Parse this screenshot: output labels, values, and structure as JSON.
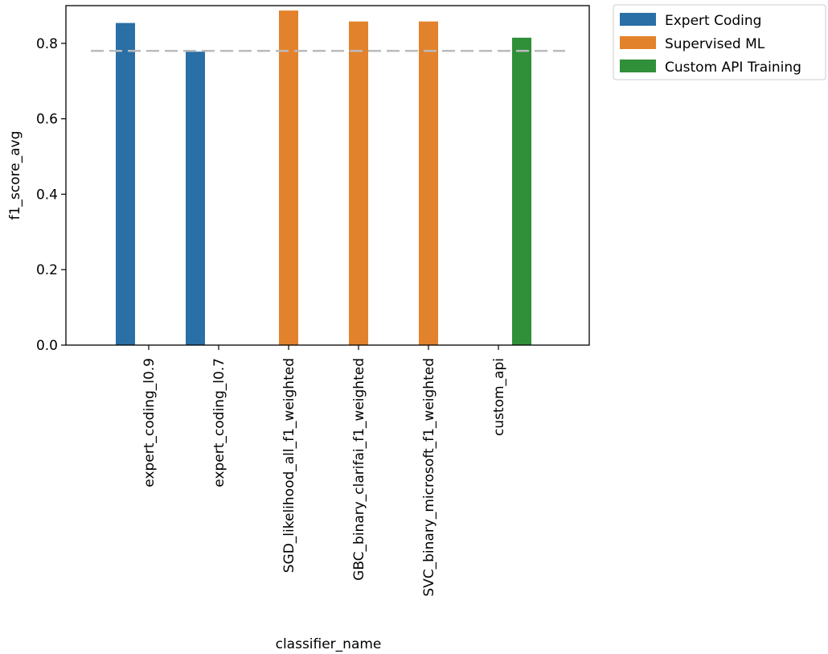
{
  "chart_data": {
    "type": "bar",
    "xlabel": "classifier_name",
    "ylabel": "f1_score_avg",
    "ylim": [
      0,
      0.9
    ],
    "yticks": [
      "0.0",
      "0.2",
      "0.4",
      "0.6",
      "0.8"
    ],
    "grid": false,
    "legend_position": "outside top-right",
    "categories": [
      "expert_coding_l0.9",
      "expert_coding_l0.7",
      "SGD_likelihood_all_f1_weighted",
      "GBC_binary_clarifai_f1_weighted",
      "SVC_binary_microsoft_f1_weighted",
      "custom_api"
    ],
    "series": [
      {
        "name": "Expert Coding",
        "color": "#2a6fa6",
        "values": [
          0.854,
          0.778,
          null,
          null,
          null,
          null
        ]
      },
      {
        "name": "Supervised ML",
        "color": "#e3822c",
        "values": [
          null,
          null,
          0.887,
          0.858,
          0.858,
          null
        ]
      },
      {
        "name": "Custom API Training",
        "color": "#2f9039",
        "values": [
          null,
          null,
          null,
          null,
          null,
          0.815
        ]
      }
    ],
    "reference_line": {
      "value": 0.78,
      "style": "dashed",
      "color": "#bbbbbb"
    }
  }
}
